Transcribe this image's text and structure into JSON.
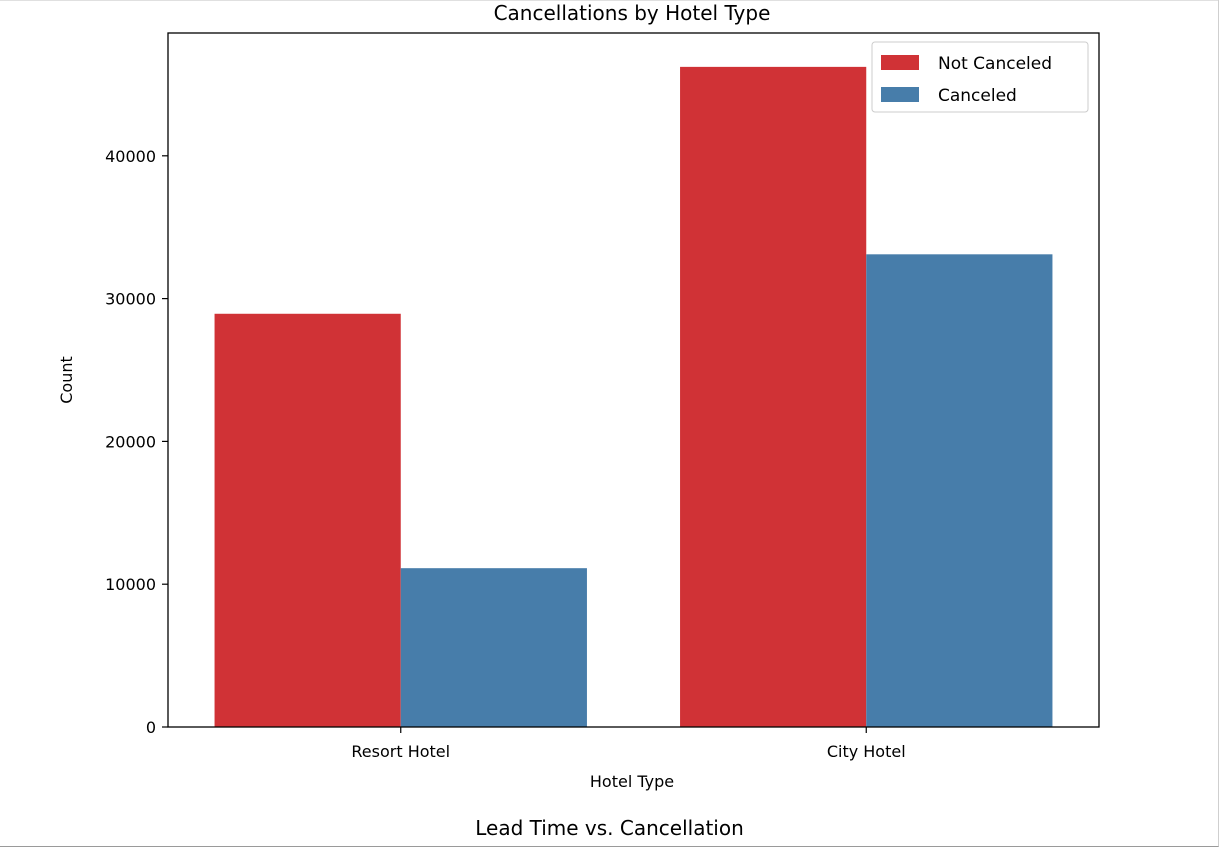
{
  "chart_data": {
    "type": "bar",
    "title": "Cancellations by Hotel Type",
    "xlabel": "Hotel Type",
    "ylabel": "Count",
    "categories": [
      "Resort Hotel",
      "City Hotel"
    ],
    "series": [
      {
        "name": "Not Canceled",
        "color": "#d03236",
        "values": [
          28938,
          46228
        ]
      },
      {
        "name": "Canceled",
        "color": "#477daa",
        "values": [
          11122,
          33102
        ]
      }
    ],
    "ylim": [
      0,
      48600
    ],
    "yticks": [
      0,
      10000,
      20000,
      30000,
      40000
    ],
    "ytick_labels": [
      "0",
      "10000",
      "20000",
      "30000",
      "40000"
    ],
    "grid": false,
    "legend_position": "top-right"
  },
  "next_chart": {
    "title": "Lead Time vs. Cancellation"
  }
}
